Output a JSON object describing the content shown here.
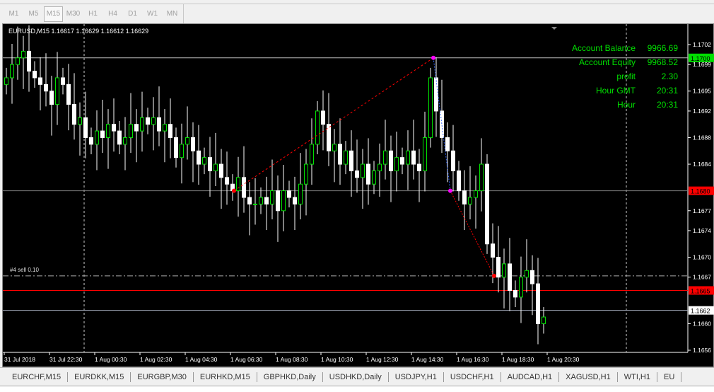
{
  "timeframes": [
    "M1",
    "M5",
    "M15",
    "M30",
    "H1",
    "H4",
    "D1",
    "W1",
    "MN"
  ],
  "active_timeframe": "M15",
  "symbol_header": "EURUSD,M15  1.16617 1.16629 1.16612 1.16629",
  "account": [
    {
      "label": "Account Balance",
      "value": "9966.69"
    },
    {
      "label": "Account Equity",
      "value": "9968.52"
    },
    {
      "label": "profit",
      "value": "2.30"
    },
    {
      "label": "Hour GMT",
      "value": "20:31"
    },
    {
      "label": "Hour",
      "value": "20:31"
    }
  ],
  "trade_label": "#4 sell 0.10",
  "price_axis": [
    "1.1702",
    "1.1699",
    "1.1695",
    "1.1692",
    "1.1688",
    "1.1684",
    "1.1677",
    "1.1674",
    "1.1670",
    "1.1667",
    "1.1660",
    "1.1656"
  ],
  "price_markers": [
    {
      "price": "1.1700",
      "color": "#00e000",
      "line": "#c0c0c0"
    },
    {
      "price": "1.1680",
      "color": "#ff0000",
      "line": "#808080"
    },
    {
      "price": "1.1665",
      "color": "#ff0000",
      "line": "#ff0000"
    },
    {
      "price": "1.1662",
      "color": "#ffffff",
      "line": "#a0a8b8"
    }
  ],
  "time_axis": [
    "31 Jul 2018",
    "31 Jul 22:30",
    "1 Aug 00:30",
    "1 Aug 02:30",
    "1 Aug 04:30",
    "1 Aug 06:30",
    "1 Aug 08:30",
    "1 Aug 10:30",
    "1 Aug 12:30",
    "1 Aug 14:30",
    "1 Aug 16:30",
    "1 Aug 18:30",
    "1 Aug 20:30"
  ],
  "chart_data": {
    "type": "candlestick",
    "symbol": "EURUSD",
    "timeframe": "M15",
    "ylim": [
      1.1656,
      1.1702
    ],
    "closes": [
      1.1697,
      1.1699,
      1.17,
      1.1701,
      1.1698,
      1.1697,
      1.1696,
      1.1695,
      1.1693,
      1.1697,
      1.1696,
      1.1693,
      1.169,
      1.1691,
      1.1688,
      1.1687,
      1.1689,
      1.1688,
      1.169,
      1.1689,
      1.1687,
      1.1688,
      1.169,
      1.1689,
      1.1691,
      1.169,
      1.1691,
      1.1689,
      1.169,
      1.1688,
      1.1685,
      1.1687,
      1.1688,
      1.1686,
      1.1684,
      1.1685,
      1.1683,
      1.1684,
      1.1682,
      1.1681,
      1.168,
      1.1682,
      1.1679,
      1.1678,
      1.1678,
      1.1679,
      1.1678,
      1.168,
      1.1677,
      1.168,
      1.1679,
      1.1678,
      1.1681,
      1.1684,
      1.1687,
      1.1692,
      1.169,
      1.1686,
      1.1687,
      1.1684,
      1.1686,
      1.1683,
      1.1682,
      1.1684,
      1.1681,
      1.1683,
      1.1684,
      1.1686,
      1.1683,
      1.1685,
      1.1684,
      1.1686,
      1.1684,
      1.1683,
      1.1688,
      1.1697,
      1.1692,
      1.1688,
      1.1686,
      1.1683,
      1.168,
      1.1678,
      1.1679,
      1.168,
      1.1684,
      1.1672,
      1.167,
      1.1667,
      1.1669,
      1.1665,
      1.1664,
      1.1667,
      1.1668,
      1.1666,
      1.166,
      1.1661
    ]
  },
  "tabs": [
    "EURCHF,M15",
    "EURDKK,M15",
    "EURGBP,M30",
    "EURHKD,M15",
    "GBPHKD,Daily",
    "USDHKD,Daily",
    "USDJPY,H1",
    "USDCHF,H1",
    "AUDCAD,H1",
    "XAGUSD,H1",
    "WTI,H1",
    "EU"
  ]
}
